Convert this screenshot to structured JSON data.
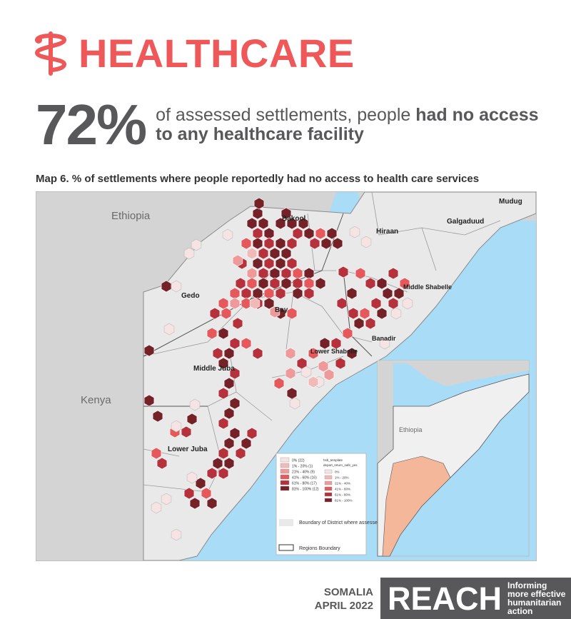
{
  "header": {
    "title": "HEALTHCARE",
    "icon": "caduceus-icon",
    "color": "#ee5859"
  },
  "stat": {
    "value": "72%",
    "text_plain": "of assessed settlements, people ",
    "text_bold_1": "had no access",
    "text_bold_2": "to any healthcare facility"
  },
  "map": {
    "title": "Map 6. % of settlements where people reportedly had no access to health care services",
    "countries": [
      "Ethiopia",
      "Kenya"
    ],
    "regions": [
      "Bakool",
      "Hiraan",
      "Galgaduud",
      "Mudug",
      "Gedo",
      "Bay",
      "Middle Shabelle",
      "Banadir",
      "Lower Shabelle",
      "Middle Juba",
      "Lower Juba"
    ],
    "inset": {
      "country_label": "Ethiopia"
    },
    "legend": {
      "hex_classes": [
        {
          "label": "0% (22)",
          "color": "#f6e4e4"
        },
        {
          "label": "1% - 20% (1)",
          "color": "#f2b9b9"
        },
        {
          "label": "21% - 40% (9)",
          "color": "#ef9a9a"
        },
        {
          "label": "41% - 60% (16)",
          "color": "#e5585b"
        },
        {
          "label": "61% - 80% (17)",
          "color": "#b5313b"
        },
        {
          "label": "81% - 100% (12)",
          "color": "#742127"
        }
      ],
      "layer_title_1": "hsb_template",
      "layer_title_2": "depart_return_safe_yes",
      "layer_classes": [
        "0%",
        "1% - 20%",
        "21% - 40%",
        "41% - 60%",
        "61% - 80%",
        "81% - 100%"
      ],
      "district_label": "Boundary of District where assessed settlements are located",
      "region_label": "Regions Boundary"
    },
    "colors": {
      "sea": "#a9dcf7",
      "land": "#d4d4d4",
      "somalia": "#e9e9e9",
      "inset_fill": "#f5b79a"
    }
  },
  "footer": {
    "country": "SOMALIA",
    "date": "APRIL 2022",
    "brand": "REACH",
    "tagline": [
      "Informing",
      "more effective",
      "humanitarian action"
    ]
  }
}
